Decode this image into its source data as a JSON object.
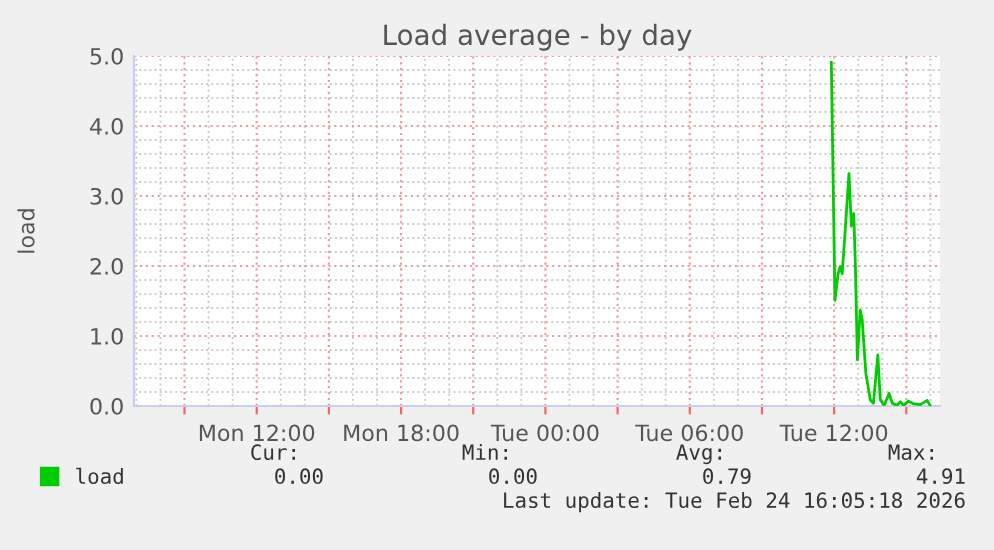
{
  "chart_data": {
    "type": "line",
    "title": "Load average - by day",
    "ylabel": "load",
    "x": [
      "2026-02-24T11:53",
      "2026-02-24T12:02",
      "2026-02-24T12:10",
      "2026-02-24T12:15",
      "2026-02-24T12:20",
      "2026-02-24T12:26",
      "2026-02-24T12:37",
      "2026-02-24T12:40",
      "2026-02-24T12:43",
      "2026-02-24T12:49",
      "2026-02-24T12:53",
      "2026-02-24T12:58",
      "2026-02-24T13:05",
      "2026-02-24T13:10",
      "2026-02-24T13:19",
      "2026-02-24T13:30",
      "2026-02-24T13:38",
      "2026-02-24T13:49",
      "2026-02-24T13:55",
      "2026-02-24T14:05",
      "2026-02-24T14:17",
      "2026-02-24T14:25",
      "2026-02-24T14:37",
      "2026-02-24T14:45",
      "2026-02-24T14:53",
      "2026-02-24T15:05",
      "2026-02-24T15:19",
      "2026-02-24T15:35",
      "2026-02-24T15:52",
      "2026-02-24T16:00"
    ],
    "series": [
      {
        "name": "load",
        "color": "#00cc00",
        "values": [
          4.91,
          1.51,
          1.89,
          1.99,
          1.89,
          2.37,
          3.32,
          2.94,
          2.57,
          2.75,
          2.0,
          0.66,
          1.37,
          1.23,
          0.47,
          0.09,
          0.04,
          0.73,
          0.09,
          0.01,
          0.18,
          0.04,
          0.01,
          0.06,
          0.01,
          0.07,
          0.03,
          0.02,
          0.08,
          0.0
        ]
      }
    ],
    "xlim": [
      "2026-02-23T06:54",
      "2026-02-24T16:24"
    ],
    "xticks": [
      {
        "value": "2026-02-23T09:00",
        "label": null
      },
      {
        "value": "2026-02-23T12:00",
        "label": "Mon 12:00"
      },
      {
        "value": "2026-02-23T15:00",
        "label": null
      },
      {
        "value": "2026-02-23T18:00",
        "label": "Mon 18:00"
      },
      {
        "value": "2026-02-23T21:00",
        "label": null
      },
      {
        "value": "2026-02-24T00:00",
        "label": "Tue 00:00"
      },
      {
        "value": "2026-02-24T03:00",
        "label": null
      },
      {
        "value": "2026-02-24T06:00",
        "label": "Tue 06:00"
      },
      {
        "value": "2026-02-24T09:00",
        "label": null
      },
      {
        "value": "2026-02-24T12:00",
        "label": "Tue 12:00"
      },
      {
        "value": "2026-02-24T15:00",
        "label": null
      }
    ],
    "ylim": [
      0,
      5
    ],
    "yticks": [
      {
        "value": 0,
        "label": "0.0"
      },
      {
        "value": 1,
        "label": "1.0"
      },
      {
        "value": 2,
        "label": "2.0"
      },
      {
        "value": 3,
        "label": "3.0"
      },
      {
        "value": 4,
        "label": "4.0"
      },
      {
        "value": 5,
        "label": "5.0"
      }
    ],
    "grid": true,
    "legend": "bottom left",
    "marker": "none",
    "line_style": "solid",
    "annotations": [
      "Cur:",
      "Min:",
      "Avg:",
      "Max:",
      "0.00",
      "0.00",
      "0.79",
      "4.91",
      "Last update: Tue Feb 24 16:05:18 2026"
    ]
  }
}
